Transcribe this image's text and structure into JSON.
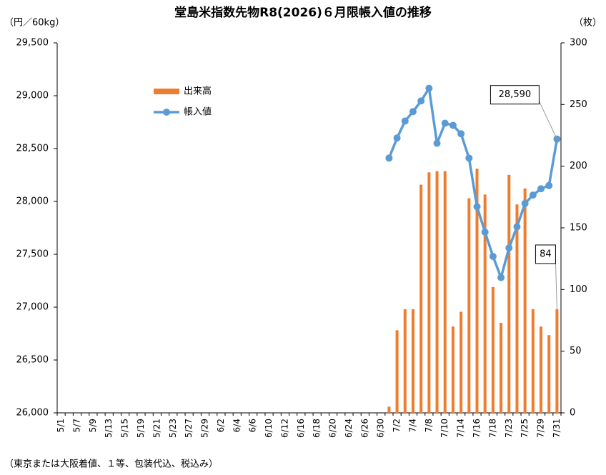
{
  "chart_data": {
    "type": "bar-line",
    "title": "堂島米指数先物R8(2026)６月限帳入値の推移",
    "y_label": "（円／60kg）",
    "y2_label": "（枚）",
    "footnote": "（東京または大阪着値、１等、包装代込、税込み）",
    "categories": [
      "5/1",
      null,
      "5/7",
      null,
      "5/9",
      null,
      "5/13",
      null,
      "5/15",
      null,
      "5/19",
      null,
      "5/21",
      null,
      "5/23",
      null,
      "5/27",
      null,
      "5/29",
      null,
      "6/2",
      null,
      "6/4",
      null,
      "6/6",
      null,
      "6/10",
      null,
      "6/12",
      null,
      "6/16",
      null,
      "6/18",
      null,
      "6/20",
      null,
      "6/24",
      null,
      "6/26",
      null,
      "6/30",
      null,
      "7/2",
      null,
      "7/4",
      null,
      "7/8",
      null,
      "7/10",
      null,
      "7/14",
      null,
      "7/16",
      null,
      "7/18",
      null,
      "7/23",
      null,
      "7/25",
      null,
      "7/29",
      null,
      "7/31"
    ],
    "series": [
      {
        "name": "出来高",
        "type": "bar",
        "axis": "y2",
        "color": "#ed7d31",
        "values": [
          null,
          null,
          null,
          null,
          null,
          null,
          null,
          null,
          null,
          null,
          null,
          null,
          null,
          null,
          null,
          null,
          null,
          null,
          null,
          null,
          null,
          null,
          null,
          null,
          null,
          null,
          null,
          null,
          null,
          null,
          null,
          null,
          null,
          null,
          null,
          null,
          null,
          null,
          null,
          null,
          null,
          5,
          67,
          84,
          84,
          185,
          195,
          196,
          196,
          70,
          82,
          174,
          198,
          177,
          102,
          73,
          193,
          169,
          182,
          84,
          70,
          63,
          84
        ],
        "value_labels": [
          null,
          null,
          null,
          null,
          null,
          null,
          null,
          null,
          null,
          null,
          null,
          null,
          null,
          null,
          null,
          null,
          null,
          null,
          null,
          null,
          null,
          null,
          null,
          null,
          null,
          null,
          null,
          null,
          null,
          null,
          null,
          null,
          null,
          null,
          null,
          null,
          null,
          null,
          null,
          null,
          null,
          null,
          null,
          null,
          null,
          null,
          null,
          null,
          null,
          null,
          null,
          null,
          null,
          null,
          null,
          null,
          null,
          null,
          null,
          null,
          null,
          null,
          "84"
        ]
      },
      {
        "name": "帳入値",
        "type": "line",
        "axis": "y",
        "color": "#5b9bd5",
        "values": [
          null,
          null,
          null,
          null,
          null,
          null,
          null,
          null,
          null,
          null,
          null,
          null,
          null,
          null,
          null,
          null,
          null,
          null,
          null,
          null,
          null,
          null,
          null,
          null,
          null,
          null,
          null,
          null,
          null,
          null,
          null,
          null,
          null,
          null,
          null,
          null,
          null,
          null,
          null,
          null,
          null,
          28410,
          28600,
          28760,
          28850,
          28950,
          29070,
          28550,
          28740,
          28720,
          28640,
          28410,
          27950,
          27710,
          27480,
          27280,
          27560,
          27760,
          27980,
          28060,
          28120,
          28150,
          28590
        ],
        "value_labels": [
          null,
          null,
          null,
          null,
          null,
          null,
          null,
          null,
          null,
          null,
          null,
          null,
          null,
          null,
          null,
          null,
          null,
          null,
          null,
          null,
          null,
          null,
          null,
          null,
          null,
          null,
          null,
          null,
          null,
          null,
          null,
          null,
          null,
          null,
          null,
          null,
          null,
          null,
          null,
          null,
          null,
          null,
          null,
          null,
          null,
          null,
          null,
          null,
          null,
          null,
          null,
          null,
          null,
          null,
          null,
          null,
          null,
          null,
          null,
          null,
          null,
          null,
          "28,590"
        ]
      }
    ],
    "ylim": [
      26000,
      29500
    ],
    "yticks": [
      {
        "value": 26000,
        "label": "26,000"
      },
      {
        "value": 26500,
        "label": "26,500"
      },
      {
        "value": 27000,
        "label": "27,000"
      },
      {
        "value": 27500,
        "label": "27,500"
      },
      {
        "value": 28000,
        "label": "28,000"
      },
      {
        "value": 28500,
        "label": "28,500"
      },
      {
        "value": 29000,
        "label": "29,000"
      },
      {
        "value": 29500,
        "label": "29,500"
      }
    ],
    "y2lim": [
      0,
      300
    ],
    "y2ticks": [
      0,
      50,
      100,
      150,
      200,
      250,
      300
    ],
    "grid": false,
    "legend": "upper left"
  }
}
